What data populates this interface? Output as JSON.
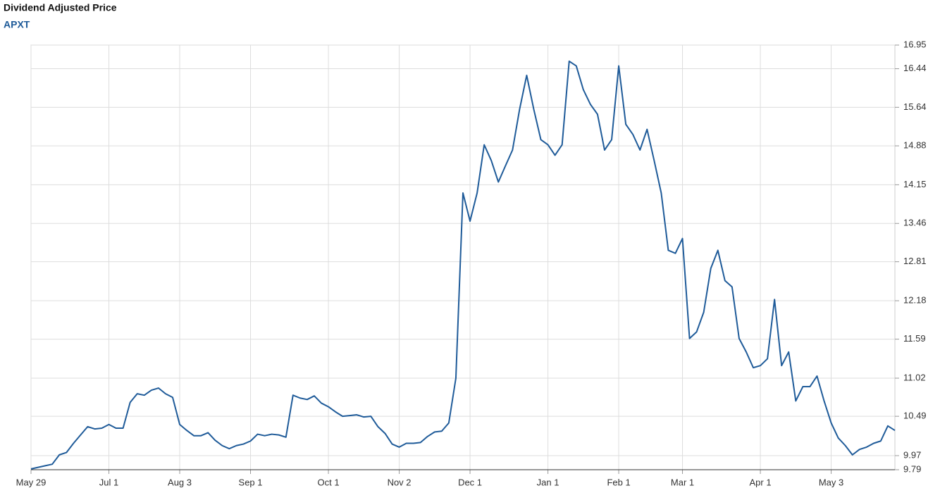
{
  "chart_data": {
    "type": "line",
    "title": "Dividend Adjusted Price",
    "subtitle": "APXT",
    "log_scale": true,
    "grid": true,
    "categories": [
      "May 29",
      null,
      null,
      null,
      null,
      null,
      null,
      null,
      null,
      null,
      null,
      "Jul 1",
      null,
      null,
      null,
      null,
      null,
      null,
      null,
      null,
      null,
      "Aug 3",
      null,
      null,
      null,
      null,
      null,
      null,
      null,
      null,
      null,
      "Sep 1",
      null,
      null,
      null,
      null,
      null,
      null,
      null,
      null,
      null,
      null,
      "Oct 1",
      null,
      null,
      null,
      null,
      null,
      null,
      null,
      null,
      null,
      "Nov 2",
      null,
      null,
      null,
      null,
      null,
      null,
      null,
      null,
      null,
      "Dec 1",
      null,
      null,
      null,
      null,
      null,
      null,
      null,
      null,
      null,
      null,
      "Jan 1",
      null,
      null,
      null,
      null,
      null,
      null,
      null,
      null,
      null,
      "Feb 1",
      null,
      null,
      null,
      null,
      null,
      null,
      null,
      null,
      "Mar 1",
      null,
      null,
      null,
      null,
      null,
      null,
      null,
      null,
      null,
      null,
      "Apr 1",
      null,
      null,
      null,
      null,
      null,
      null,
      null,
      null,
      null,
      "May 3",
      null,
      null,
      null,
      null,
      null,
      null,
      null,
      null,
      null
    ],
    "series": [
      {
        "color": "#1f5b99",
        "values": [
          9.8,
          9.82,
          9.84,
          9.86,
          9.98,
          10.01,
          10.13,
          10.24,
          10.35,
          10.32,
          10.33,
          10.38,
          10.33,
          10.33,
          10.68,
          10.8,
          10.78,
          10.85,
          10.88,
          10.8,
          10.75,
          10.38,
          10.3,
          10.23,
          10.23,
          10.27,
          10.17,
          10.1,
          10.06,
          10.1,
          10.12,
          10.16,
          10.25,
          10.23,
          10.25,
          10.24,
          10.21,
          10.78,
          10.74,
          10.72,
          10.77,
          10.67,
          10.62,
          10.55,
          10.49,
          10.5,
          10.51,
          10.48,
          10.49,
          10.35,
          10.26,
          10.12,
          10.08,
          10.13,
          10.13,
          10.14,
          10.22,
          10.28,
          10.29,
          10.4,
          11.02,
          14.0,
          13.5,
          14.0,
          14.9,
          14.6,
          14.2,
          14.5,
          14.8,
          15.6,
          16.3,
          15.6,
          15.0,
          14.9,
          14.7,
          14.9,
          16.6,
          16.5,
          16.0,
          15.7,
          15.5,
          14.8,
          15.0,
          16.5,
          15.3,
          15.1,
          14.8,
          15.2,
          14.6,
          14.0,
          13.0,
          12.95,
          13.2,
          11.6,
          11.7,
          12.0,
          12.7,
          13.0,
          12.5,
          12.4,
          11.6,
          11.4,
          11.17,
          11.2,
          11.3,
          12.2,
          11.2,
          11.4,
          10.7,
          10.9,
          10.9,
          11.05,
          10.7,
          10.4,
          10.2,
          10.1,
          9.98,
          10.05,
          10.08,
          10.13,
          10.16,
          10.36,
          10.3
        ]
      }
    ],
    "ylim": [
      9.79,
      16.95
    ],
    "yticks": [
      9.79,
      9.97,
      10.49,
      11.02,
      11.59,
      12.18,
      12.81,
      13.46,
      14.15,
      14.88,
      15.64,
      16.44,
      16.95
    ]
  }
}
